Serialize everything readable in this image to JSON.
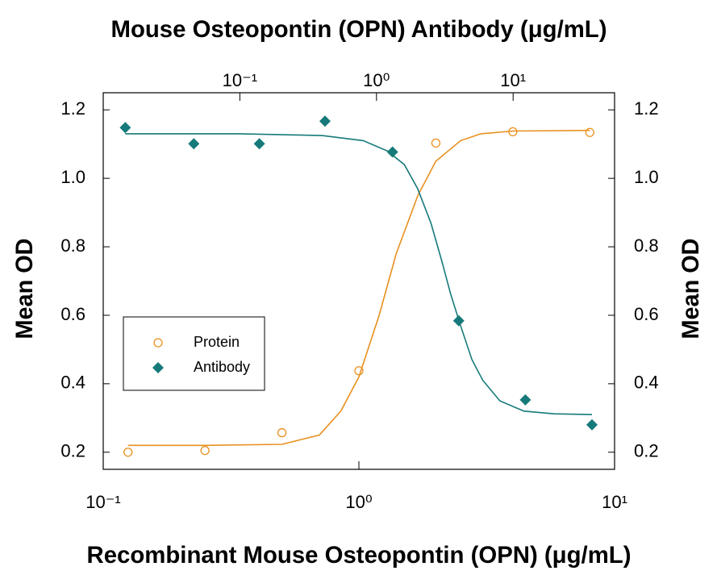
{
  "chart_data": {
    "type": "scatter",
    "x2label": "Mouse Osteopontin (OPN) Antibody (μg/mL)",
    "xlabel": "Recombinant Mouse Osteopontin (OPN) (μg/mL)",
    "ylabel": "Mean OD",
    "y2label": "Mean OD",
    "xscale": "log",
    "x2scale": "log",
    "xlim": [
      0.1,
      10
    ],
    "xticks": [
      {
        "value": 0.1,
        "label": "10⁻¹"
      },
      {
        "value": 1,
        "label": "10⁰"
      },
      {
        "value": 10,
        "label": "10¹"
      }
    ],
    "x2lim": [
      0.01,
      55.3
    ],
    "x2ticks": [
      {
        "value": 0.1,
        "label": "10⁻¹"
      },
      {
        "value": 1,
        "label": "10⁰"
      },
      {
        "value": 10,
        "label": "10¹"
      }
    ],
    "ylim": [
      0.15,
      1.25
    ],
    "yticks": [
      0.2,
      0.4,
      0.6,
      0.8,
      {
        "value": 1,
        "label": "1.0"
      },
      1.2
    ],
    "y2lim": [
      0.15,
      1.25
    ],
    "y2ticks": [
      0.2,
      0.4,
      0.6,
      0.8,
      {
        "value": 1,
        "label": "1.0"
      },
      1.2
    ],
    "legend": "lower-left",
    "series": [
      {
        "name": "Protein",
        "color": "#e8901e",
        "marker": "circle",
        "axis": "x",
        "x": [
          0.125,
          0.25,
          0.5,
          1,
          2,
          4,
          8
        ],
        "values": [
          0.2,
          0.205,
          0.257,
          0.438,
          1.103,
          1.136,
          1.134
        ],
        "fit_x": [
          0.125,
          0.25,
          0.5,
          0.7,
          0.85,
          1.0,
          1.2,
          1.4,
          1.7,
          2.0,
          2.5,
          3,
          4,
          8
        ],
        "fit_values": [
          0.22,
          0.22,
          0.223,
          0.25,
          0.32,
          0.42,
          0.6,
          0.78,
          0.95,
          1.05,
          1.11,
          1.13,
          1.138,
          1.14
        ]
      },
      {
        "name": "Antibody",
        "color": "#177a7a",
        "marker": "diamond",
        "axis": "x2",
        "x": [
          0.0145,
          0.046,
          0.139,
          0.42,
          1.31,
          4.0,
          12.3,
          37.8
        ],
        "values": [
          1.148,
          1.101,
          1.101,
          1.167,
          1.077,
          0.584,
          0.353,
          0.28
        ],
        "fit_x": [
          0.0145,
          0.1,
          0.4,
          0.8,
          1.2,
          1.6,
          2.0,
          2.5,
          3.0,
          3.5,
          4.2,
          5,
          6,
          8,
          12,
          20,
          37.8
        ],
        "fit_values": [
          1.13,
          1.13,
          1.125,
          1.11,
          1.08,
          1.04,
          0.97,
          0.87,
          0.76,
          0.66,
          0.56,
          0.47,
          0.41,
          0.35,
          0.32,
          0.312,
          0.31
        ]
      }
    ]
  }
}
